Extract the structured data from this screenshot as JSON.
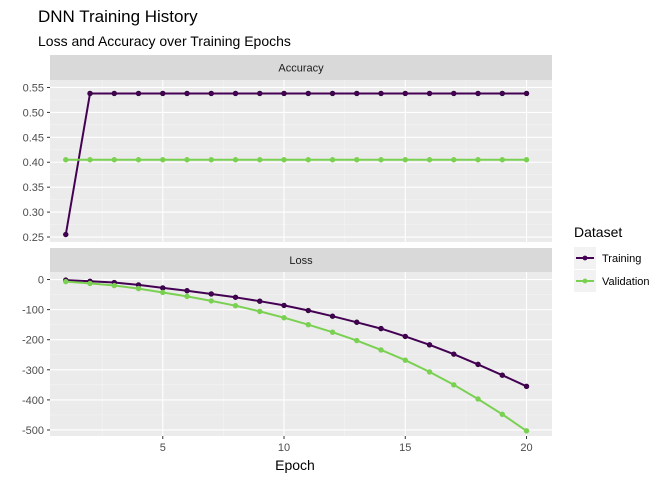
{
  "title": "DNN Training History",
  "subtitle": "Loss and Accuracy over Training Epochs",
  "chart_data": {
    "type": "line",
    "xlabel": "Epoch",
    "x": [
      1,
      2,
      3,
      4,
      5,
      6,
      7,
      8,
      9,
      10,
      11,
      12,
      13,
      14,
      15,
      16,
      17,
      18,
      19,
      20
    ],
    "x_ticks": [
      "5",
      "10",
      "15",
      "20"
    ],
    "legend": {
      "title": "Dataset",
      "position": "right",
      "entries": [
        "Training",
        "Validation"
      ]
    },
    "series_colors": {
      "Training": "#440154",
      "Validation": "#7AD151"
    },
    "facets": [
      {
        "label": "Accuracy",
        "ylim": [
          0.24,
          0.565
        ],
        "y_ticks": [
          "0.25",
          "0.30",
          "0.35",
          "0.40",
          "0.45",
          "0.50",
          "0.55"
        ],
        "series": [
          {
            "name": "Training",
            "values": [
              0.255,
              0.538,
              0.538,
              0.538,
              0.538,
              0.538,
              0.538,
              0.538,
              0.538,
              0.538,
              0.538,
              0.538,
              0.538,
              0.538,
              0.538,
              0.538,
              0.538,
              0.538,
              0.538,
              0.538
            ]
          },
          {
            "name": "Validation",
            "values": [
              0.405,
              0.405,
              0.405,
              0.405,
              0.405,
              0.405,
              0.405,
              0.405,
              0.405,
              0.405,
              0.405,
              0.405,
              0.405,
              0.405,
              0.405,
              0.405,
              0.405,
              0.405,
              0.405,
              0.405
            ]
          }
        ]
      },
      {
        "label": "Loss",
        "ylim": [
          -520,
          25
        ],
        "y_ticks": [
          "0",
          "-100",
          "-200",
          "-300",
          "-400",
          "-500"
        ],
        "series": [
          {
            "name": "Training",
            "values": [
              -2,
              -6,
              -10,
              -18,
              -28,
              -37,
              -48,
              -59,
              -72,
              -86,
              -103,
              -122,
              -142,
              -163,
              -189,
              -217,
              -248,
              -282,
              -318,
              -355
            ]
          },
          {
            "name": "Validation",
            "values": [
              -7,
              -13,
              -20,
              -30,
              -43,
              -56,
              -71,
              -87,
              -106,
              -127,
              -150,
              -175,
              -203,
              -234,
              -268,
              -307,
              -350,
              -397,
              -448,
              -503
            ]
          }
        ]
      }
    ]
  }
}
